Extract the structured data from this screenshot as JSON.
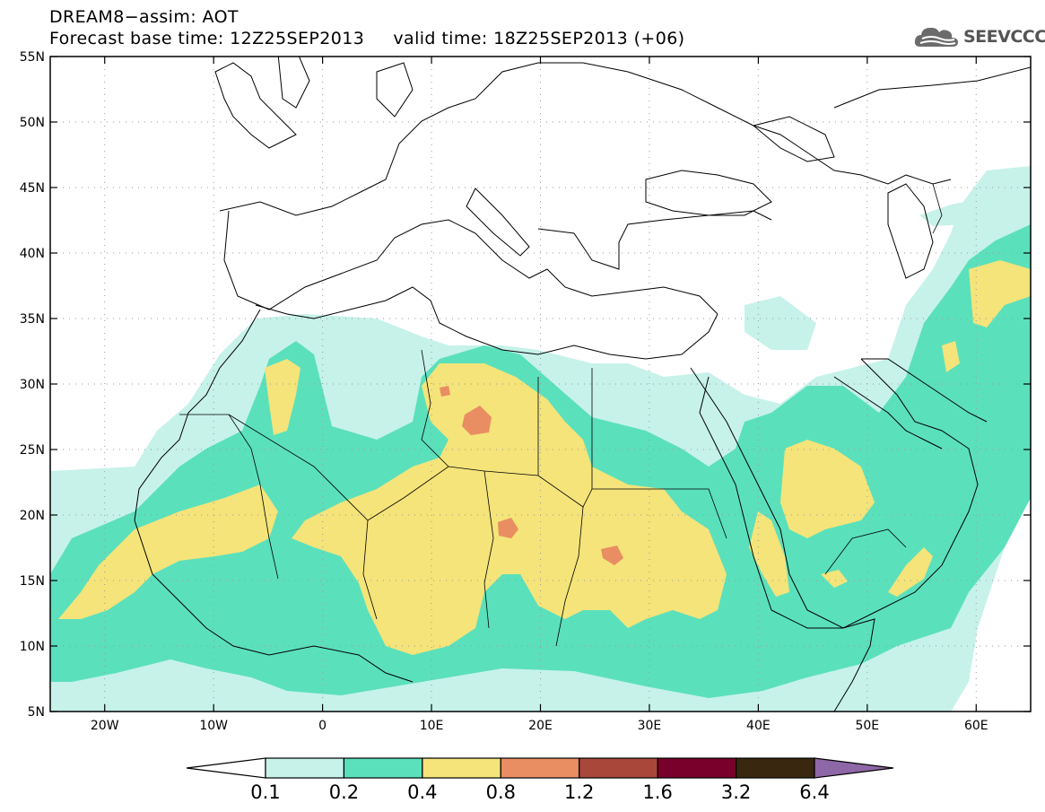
{
  "title": {
    "line1": "DREAM8−assim: AOT",
    "line2": "Forecast base time: 12Z25SEP2013     valid time: 18Z25SEP2013 (+06)"
  },
  "logo": {
    "text": "SEEVCCC",
    "icon": "cloud-logo-icon"
  },
  "map": {
    "lon_range": [
      -25,
      65
    ],
    "lat_range": [
      5,
      55
    ],
    "lat_ticks": [
      {
        "value": 55,
        "label": "55N"
      },
      {
        "value": 50,
        "label": "50N"
      },
      {
        "value": 45,
        "label": "45N"
      },
      {
        "value": 40,
        "label": "40N"
      },
      {
        "value": 35,
        "label": "35N"
      },
      {
        "value": 30,
        "label": "30N"
      },
      {
        "value": 25,
        "label": "25N"
      },
      {
        "value": 20,
        "label": "20N"
      },
      {
        "value": 15,
        "label": "15N"
      },
      {
        "value": 10,
        "label": "10N"
      },
      {
        "value": 5,
        "label": "5N"
      }
    ],
    "lon_ticks": [
      {
        "value": -20,
        "label": "20W"
      },
      {
        "value": -10,
        "label": "10W"
      },
      {
        "value": 0,
        "label": "0"
      },
      {
        "value": 10,
        "label": "10E"
      },
      {
        "value": 20,
        "label": "20E"
      },
      {
        "value": 30,
        "label": "30E"
      },
      {
        "value": 40,
        "label": "40E"
      },
      {
        "value": 50,
        "label": "50E"
      },
      {
        "value": 60,
        "label": "60E"
      }
    ],
    "grid": "dotted"
  },
  "colorbar": {
    "colors": [
      "#c6f2ea",
      "#5be0bc",
      "#f4e47a",
      "#e98d62",
      "#a9473b",
      "#78002a",
      "#3a2710"
    ],
    "under_color": "#ffffff",
    "over_color": "#8e67a6",
    "labels": [
      "0.1",
      "0.2",
      "0.4",
      "0.8",
      "1.2",
      "1.6",
      "3.2",
      "6.4"
    ]
  }
}
